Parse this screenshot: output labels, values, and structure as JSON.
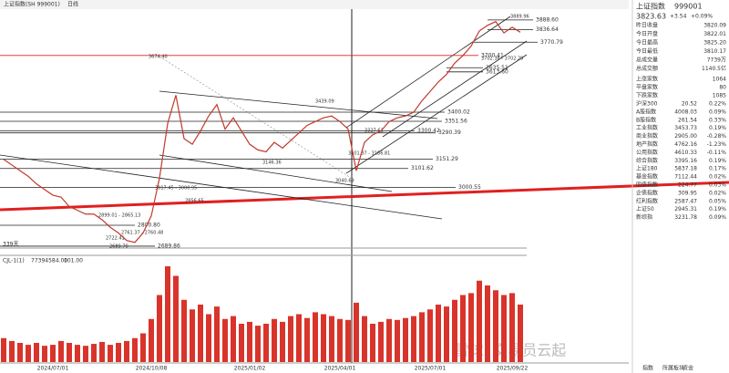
{
  "toolbar": {
    "title": "上证指数(SH 999001)",
    "period": "日线"
  },
  "chart_data": [
    {
      "type": "line",
      "color": "#c0392b",
      "categories": [
        null,
        null,
        null,
        null,
        null,
        null,
        "2024/07/01",
        null,
        null,
        null,
        null,
        null,
        null,
        null,
        null,
        null,
        null,
        null,
        "2024/10/08",
        null,
        null,
        null,
        null,
        null,
        null,
        null,
        null,
        null,
        null,
        null,
        "2025/01/02",
        null,
        null,
        null,
        null,
        null,
        null,
        null,
        null,
        null,
        null,
        "2025/04/01",
        null,
        null,
        null,
        null,
        null,
        null,
        null,
        null,
        null,
        null,
        "2025/07/01",
        null,
        null,
        null,
        null,
        null,
        null,
        null,
        null,
        null,
        "2025/09/22",
        null
      ],
      "values": [
        3150,
        3120,
        3090,
        3060,
        3020,
        2990,
        2960,
        2950,
        2900,
        2880,
        2860,
        2860,
        2830,
        2790,
        2760,
        2720,
        2710,
        2760,
        2850,
        3050,
        3340,
        3490,
        3260,
        3230,
        3300,
        3380,
        3440,
        3310,
        3370,
        3300,
        3230,
        3200,
        3190,
        3240,
        3210,
        3250,
        3290,
        3330,
        3350,
        3370,
        3380,
        3350,
        3310,
        3090,
        3240,
        3280,
        3300,
        3350,
        3370,
        3380,
        3400,
        3460,
        3510,
        3560,
        3600,
        3660,
        3700,
        3750,
        3830,
        3860,
        3880,
        3820,
        3850,
        3823.63
      ],
      "ylim": [
        2680,
        3946
      ],
      "levels": [
        {
          "value": 3888.6,
          "label": "3888.60"
        },
        {
          "value": 3836.64,
          "label": "3836.64"
        },
        {
          "value": 3770.79,
          "label": "3770.79"
        },
        {
          "value": 3700.41,
          "label": "3700.41"
        },
        {
          "value": 3635.51,
          "label": "3635.51"
        },
        {
          "value": 3613.6,
          "label": "3613.60"
        },
        {
          "value": 3400.02,
          "label": "3400.02"
        },
        {
          "value": 3351.56,
          "label": "3351.56"
        },
        {
          "value": 3300.42,
          "label": "3300.42"
        },
        {
          "value": 3290.39,
          "label": "3290.39"
        },
        {
          "value": 3151.29,
          "label": "3151.29"
        },
        {
          "value": 3101.62,
          "label": "3101.62"
        },
        {
          "value": 3000.55,
          "label": "3000.55"
        },
        {
          "value": 2800.8,
          "label": "2800.80"
        },
        {
          "value": 2689.86,
          "label": "2689.86"
        }
      ],
      "annotations": [
        "3674.40",
        "3889.96",
        "3439.09",
        "3040.69",
        "2689.70",
        "2722.41",
        "2761.37 - 2760.48",
        "3017.45 - 3000.95",
        "3101.37 - 3186.81",
        "3146.36",
        "2856.65",
        "2899.01 - 2865.13",
        "3327.61",
        "3702.38 - 3702.29"
      ],
      "days_label": "339天"
    },
    {
      "type": "bar",
      "title": "CJL-1(1)",
      "stats": [
        "77394584.00",
        "101.00"
      ],
      "color": "#d9342b",
      "ylim": [
        0,
        100
      ],
      "values": [
        25,
        22,
        20,
        18,
        20,
        17,
        18,
        22,
        20,
        18,
        17,
        19,
        21,
        18,
        20,
        22,
        25,
        30,
        45,
        70,
        100,
        90,
        65,
        55,
        60,
        50,
        58,
        45,
        48,
        40,
        42,
        38,
        40,
        45,
        42,
        48,
        50,
        46,
        52,
        50,
        48,
        45,
        44,
        62,
        48,
        40,
        42,
        45,
        44,
        46,
        48,
        52,
        55,
        60,
        58,
        65,
        70,
        72,
        85,
        80,
        75,
        70,
        72,
        60
      ]
    }
  ],
  "watermark": "雪球: 交易员云起",
  "panel": {
    "name": "上证指数",
    "code": "999001",
    "price": "3823.63",
    "change": "+3.54",
    "pct": "+0.09%",
    "quote": [
      [
        "昨日收盘",
        "3820.09"
      ],
      [
        "今日开盘",
        "3822.01"
      ],
      [
        "今日最高",
        "3825.20"
      ],
      [
        "今日最低",
        "3810.17"
      ],
      [
        "总成交量",
        "7739万"
      ],
      [
        "总成交额",
        "1140.5亿"
      ]
    ],
    "breadth": [
      [
        "上涨家数",
        "1064"
      ],
      [
        "平盘家数",
        "80"
      ],
      [
        "下跌家数",
        "1085"
      ]
    ],
    "indices": [
      [
        "沪深300",
        "20.52",
        "0.22%"
      ],
      [
        "A股指数",
        "4008.03",
        "0.09%"
      ],
      [
        "B股指数",
        "261.54",
        "0.33%"
      ],
      [
        "工业指数",
        "3453.73",
        "0.19%"
      ],
      [
        "商业指数",
        "2905.00",
        "-0.28%"
      ],
      [
        "地产指数",
        "4762.16",
        "-1.23%"
      ],
      [
        "公用指数",
        "4610.33",
        "-0.11%"
      ],
      [
        "综合指数",
        "3395.16",
        "0.19%"
      ],
      [
        "上证180",
        "5837.18",
        "0.17%"
      ],
      [
        "基金指数",
        "7112.44",
        "0.02%"
      ],
      [
        "国债指数",
        "224.77",
        "0.03%"
      ],
      [
        "企债指数",
        "309.95",
        "0.02%"
      ],
      [
        "红利指数",
        "2587.47",
        "0.05%"
      ],
      [
        "上证50",
        "2945.31",
        "0.19%"
      ],
      [
        "新综指",
        "3231.78",
        "0.09%"
      ]
    ],
    "tabs": [
      "指数",
      "所属板块",
      "资金"
    ]
  }
}
